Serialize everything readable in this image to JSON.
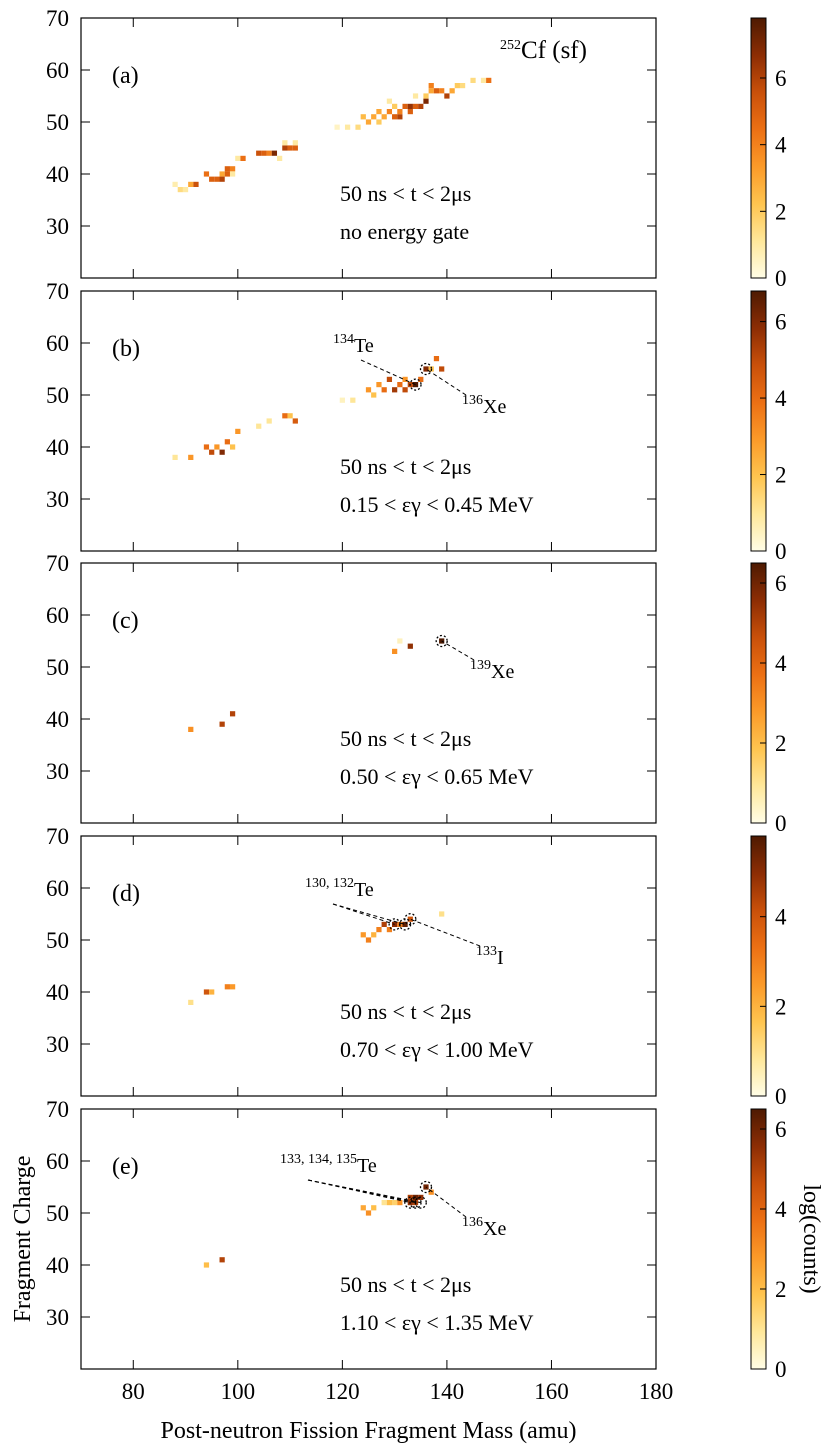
{
  "chart_data": [
    {
      "type": "heatmap",
      "panel": "(a)",
      "source": {
        "sup": "252",
        "text": "Cf (sf)"
      },
      "time_gate": "50 ns < t < 2μs",
      "energy_gate": "no energy gate",
      "isotopes": [],
      "x": [
        88,
        89,
        90,
        91,
        92,
        94,
        95,
        96,
        97,
        97,
        98,
        99,
        98,
        99,
        100,
        101,
        104,
        105,
        106,
        107,
        108,
        109,
        109,
        110,
        111,
        111,
        119,
        121,
        123,
        124,
        125,
        126,
        127,
        127,
        128,
        129,
        130,
        131,
        131,
        132,
        133,
        133,
        134,
        135,
        136,
        136,
        137,
        137,
        138,
        139,
        140,
        141,
        142,
        143,
        145,
        147,
        148,
        129,
        130,
        134
      ],
      "y": [
        38,
        37,
        37,
        38,
        38,
        40,
        39,
        39,
        40,
        39,
        41,
        41,
        40,
        40,
        43,
        43,
        44,
        44,
        44,
        44,
        43,
        45,
        46,
        45,
        45,
        46,
        49,
        49,
        49,
        51,
        50,
        51,
        50,
        52,
        51,
        52,
        51,
        51,
        52,
        53,
        53,
        52,
        53,
        53,
        54,
        55,
        56,
        57,
        56,
        56,
        55,
        56,
        57,
        57,
        58,
        58,
        58,
        54,
        53,
        55
      ],
      "values": [
        0.8,
        1.5,
        1,
        3,
        5.5,
        4.5,
        5,
        5,
        3,
        6,
        5,
        4,
        5,
        1,
        1,
        4.5,
        5.5,
        5,
        4,
        7,
        1,
        6,
        1,
        5,
        5,
        1,
        0.5,
        1,
        1.5,
        2.5,
        3,
        3,
        2,
        3,
        3,
        4,
        5,
        6,
        4,
        5,
        6.5,
        5,
        5,
        6,
        7,
        2,
        3,
        4,
        5,
        4,
        6,
        3,
        2,
        1.5,
        1.5,
        1,
        4.5,
        1,
        2,
        1
      ],
      "xlim": [
        70,
        180
      ],
      "xticks": [
        80,
        100,
        120,
        140,
        160,
        180
      ],
      "ylim": [
        20,
        70
      ],
      "yticks": [
        30,
        40,
        50,
        60,
        70
      ],
      "clim": [
        0,
        7.8
      ],
      "cticks": [
        0,
        2,
        4,
        6
      ],
      "colors": [
        "#fffde6",
        "#fee79a",
        "#fec44f",
        "#fb9a29",
        "#ec7014",
        "#c9500a",
        "#8c2d04",
        "#4e1a02"
      ]
    },
    {
      "type": "heatmap",
      "panel": "(b)",
      "time_gate": "50 ns < t < 2μs",
      "energy_gate": "0.15 < εγ < 0.45 MeV",
      "isotopes": [
        {
          "sup": "134",
          "text": "Te",
          "at": [
            [
              134,
              52
            ]
          ]
        },
        {
          "sup": "136",
          "text": "Xe",
          "at": [
            [
              136,
              55
            ]
          ]
        }
      ],
      "x": [
        88,
        91,
        94,
        95,
        96,
        97,
        98,
        99,
        100,
        104,
        106,
        109,
        110,
        111,
        120,
        122,
        125,
        126,
        127,
        128,
        129,
        130,
        131,
        132,
        132,
        133,
        134,
        135,
        136,
        137,
        138,
        139
      ],
      "y": [
        38,
        38,
        40,
        39,
        40,
        39,
        41,
        40,
        43,
        44,
        45,
        46,
        46,
        45,
        49,
        49,
        51,
        50,
        52,
        51,
        53,
        51,
        52,
        53,
        51,
        52,
        52,
        53,
        55,
        55,
        57,
        55
      ],
      "values": [
        1,
        3,
        4,
        5,
        3,
        6,
        4,
        2,
        3,
        1,
        1,
        4,
        2,
        4.5,
        0.5,
        1,
        3,
        2,
        3,
        4,
        5,
        5.5,
        4,
        3,
        5,
        5,
        6.8,
        4,
        6,
        2,
        4,
        5
      ],
      "xlim": [
        70,
        180
      ],
      "xticks": [
        80,
        100,
        120,
        140,
        160,
        180
      ],
      "ylim": [
        20,
        70
      ],
      "yticks": [
        30,
        40,
        50,
        60,
        70
      ],
      "clim": [
        0,
        6.8
      ],
      "cticks": [
        0,
        2,
        4,
        6
      ],
      "colors": [
        "#fffde6",
        "#fee79a",
        "#fec44f",
        "#fb9a29",
        "#ec7014",
        "#c9500a",
        "#8c2d04",
        "#4e1a02"
      ]
    },
    {
      "type": "heatmap",
      "panel": "(c)",
      "time_gate": "50 ns < t < 2μs",
      "energy_gate": "0.50 < εγ < 0.65 MeV",
      "isotopes": [
        {
          "sup": "139",
          "text": "Xe",
          "at": [
            [
              139,
              55
            ]
          ]
        }
      ],
      "x": [
        91,
        97,
        99,
        130,
        133,
        139,
        131
      ],
      "y": [
        38,
        39,
        41,
        53,
        54,
        55,
        55
      ],
      "values": [
        3,
        5,
        5,
        3,
        5.5,
        6.5,
        0.5
      ],
      "xlim": [
        70,
        180
      ],
      "xticks": [
        80,
        100,
        120,
        140,
        160,
        180
      ],
      "ylim": [
        20,
        70
      ],
      "yticks": [
        30,
        40,
        50,
        60,
        70
      ],
      "clim": [
        0,
        6.5
      ],
      "cticks": [
        0,
        2,
        4,
        6
      ],
      "colors": [
        "#fffde6",
        "#fee79a",
        "#fec44f",
        "#fb9a29",
        "#ec7014",
        "#c9500a",
        "#8c2d04",
        "#4e1a02"
      ]
    },
    {
      "type": "heatmap",
      "panel": "(d)",
      "time_gate": "50 ns < t < 2μs",
      "energy_gate": "0.70 < εγ < 1.00 MeV",
      "isotopes": [
        {
          "sup": "130, 132",
          "text": "Te",
          "at": [
            [
              130,
              53
            ],
            [
              132,
              53
            ]
          ]
        },
        {
          "sup": "133",
          "text": "I",
          "at": [
            [
              133,
              54
            ]
          ]
        }
      ],
      "x": [
        91,
        94,
        95,
        98,
        99,
        124,
        125,
        126,
        127,
        128,
        129,
        130,
        131,
        132,
        133,
        139
      ],
      "y": [
        38,
        40,
        40,
        41,
        41,
        51,
        50,
        51,
        52,
        53,
        52,
        53,
        53,
        53,
        54,
        55
      ],
      "values": [
        1,
        4,
        2,
        3,
        2.5,
        2.5,
        3,
        2,
        3,
        4.5,
        3,
        5,
        3,
        5.5,
        4,
        1
      ],
      "xlim": [
        70,
        180
      ],
      "xticks": [
        80,
        100,
        120,
        140,
        160,
        180
      ],
      "ylim": [
        20,
        70
      ],
      "yticks": [
        30,
        40,
        50,
        60,
        70
      ],
      "clim": [
        0,
        5.8
      ],
      "cticks": [
        0,
        2,
        4
      ],
      "colors": [
        "#fffde6",
        "#fee79a",
        "#fec44f",
        "#fb9a29",
        "#ec7014",
        "#c9500a",
        "#8c2d04",
        "#4e1a02"
      ]
    },
    {
      "type": "heatmap",
      "panel": "(e)",
      "time_gate": "50 ns < t < 2μs",
      "energy_gate": "1.10 < εγ < 1.35 MeV",
      "isotopes": [
        {
          "sup": "133, 134, 135",
          "text": "Te",
          "at": [
            [
              133,
              52
            ],
            [
              134,
              52
            ],
            [
              135,
              52
            ]
          ]
        },
        {
          "sup": "136",
          "text": "Xe",
          "at": [
            [
              136,
              55
            ]
          ]
        }
      ],
      "x": [
        94,
        97,
        124,
        125,
        126,
        128,
        129,
        130,
        131,
        133,
        133,
        134,
        134,
        135,
        136,
        137
      ],
      "y": [
        40,
        41,
        51,
        50,
        51,
        52,
        52,
        52,
        52,
        53,
        52,
        53,
        52,
        53,
        55,
        54
      ],
      "values": [
        2,
        5,
        2.5,
        3,
        2,
        1,
        2,
        1.5,
        3,
        5,
        5.5,
        6,
        5,
        5.5,
        6,
        3
      ],
      "xlim": [
        70,
        180
      ],
      "xticks": [
        80,
        100,
        120,
        140,
        160,
        180
      ],
      "ylim": [
        20,
        70
      ],
      "yticks": [
        30,
        40,
        50,
        60,
        70
      ],
      "clim": [
        0,
        6.5
      ],
      "cticks": [
        0,
        2,
        4,
        6
      ],
      "colors": [
        "#fffde6",
        "#fee79a",
        "#fec44f",
        "#fb9a29",
        "#ec7014",
        "#c9500a",
        "#8c2d04",
        "#4e1a02"
      ],
      "xlabel": "Post-neutron Fission Fragment Mass (amu)",
      "ylabel": "Fragment Charge",
      "colorbar_label": "log(counts)"
    }
  ]
}
